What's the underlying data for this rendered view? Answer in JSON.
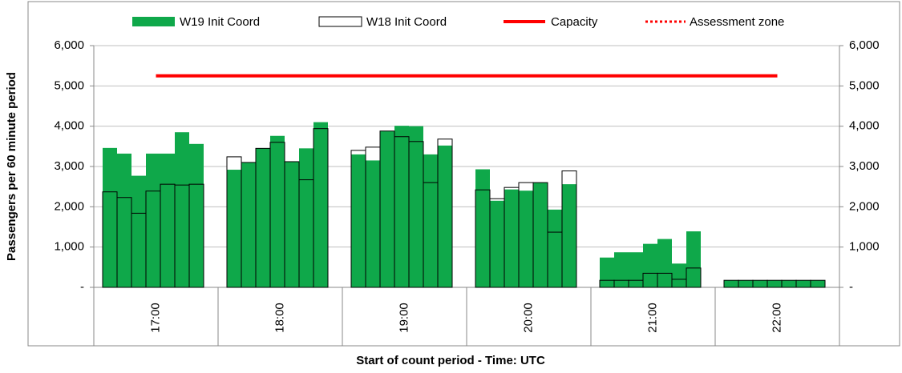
{
  "chart_data": {
    "type": "bar",
    "categories": [
      "17:00",
      "18:00",
      "19:00",
      "20:00",
      "21:00",
      "22:00"
    ],
    "x_label": "Start of count period - Time: UTC",
    "y_label": "Passengers per 60 minute period",
    "series": [
      {
        "name": "W19 Init Coord",
        "color": "#0fa84a",
        "style": "filled",
        "values": [
          [
            3460,
            3320,
            2770,
            3320,
            3320,
            3850,
            3560
          ],
          [
            2920,
            3100,
            3450,
            3760,
            3120,
            3450,
            4100
          ],
          [
            3300,
            3150,
            3880,
            4010,
            4000,
            3300,
            3520
          ],
          [
            2930,
            2150,
            2430,
            2400,
            2600,
            1930,
            2560
          ],
          [
            740,
            870,
            870,
            1080,
            1200,
            590,
            1390
          ],
          [
            175,
            175,
            175,
            175,
            175,
            175,
            175
          ]
        ]
      },
      {
        "name": "W18 Init Coord",
        "color": "#000000",
        "style": "outline",
        "values": [
          [
            2370,
            2230,
            1840,
            2390,
            2560,
            2540,
            2560
          ],
          [
            3240,
            3100,
            3450,
            3600,
            3120,
            2670,
            3940
          ],
          [
            3400,
            3480,
            3880,
            3740,
            3620,
            2600,
            3680
          ],
          [
            2420,
            2200,
            2480,
            2600,
            2600,
            1370,
            2890
          ],
          [
            175,
            175,
            175,
            350,
            350,
            200,
            480
          ],
          [
            175,
            175,
            175,
            175,
            175,
            175,
            175
          ]
        ]
      },
      {
        "name": "Capacity",
        "color": "#ff0000",
        "style": "line",
        "values": [
          5250,
          5250,
          5250,
          5250,
          5250,
          5250
        ]
      },
      {
        "name": "Assessment zone",
        "color": "#ff0000",
        "style": "dotted"
      }
    ],
    "ylim": [
      0,
      6000
    ],
    "yticks": [
      {
        "value": 0,
        "label": "-"
      },
      {
        "value": 1000,
        "label": "1,000"
      },
      {
        "value": 2000,
        "label": "2,000"
      },
      {
        "value": 3000,
        "label": "3,000"
      },
      {
        "value": 4000,
        "label": "4,000"
      },
      {
        "value": 5000,
        "label": "5,000"
      },
      {
        "value": 6000,
        "label": "6,000"
      }
    ],
    "y2lim": [
      0,
      6000
    ],
    "y2ticks": [
      {
        "value": 0,
        "label": "-"
      },
      {
        "value": 1000,
        "label": "1,000"
      },
      {
        "value": 2000,
        "label": "2,000"
      },
      {
        "value": 3000,
        "label": "3,000"
      },
      {
        "value": 4000,
        "label": "4,000"
      },
      {
        "value": 5000,
        "label": "5,000"
      },
      {
        "value": 6000,
        "label": "6,000"
      }
    ],
    "grid": true,
    "legend": "top"
  }
}
